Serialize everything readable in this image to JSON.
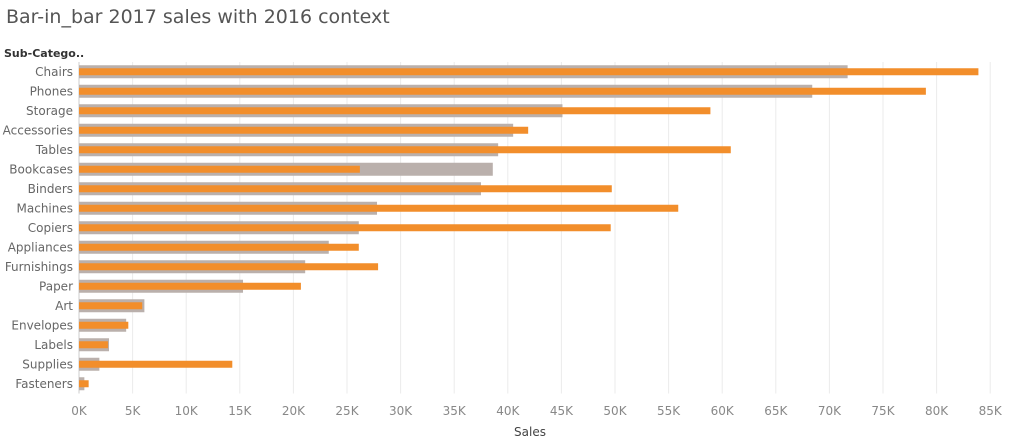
{
  "chart_data": {
    "type": "bar",
    "orientation": "horizontal",
    "title": "Bar-in_bar 2017 sales with 2016 context",
    "y_field_label": "Sub-Catego..",
    "xlabel": "Sales",
    "xlim": [
      0,
      88000
    ],
    "x_ticks": [
      0,
      5000,
      10000,
      15000,
      20000,
      25000,
      30000,
      35000,
      40000,
      45000,
      50000,
      55000,
      60000,
      65000,
      70000,
      75000,
      80000,
      85000
    ],
    "x_tick_labels": [
      "0K",
      "5K",
      "10K",
      "15K",
      "20K",
      "25K",
      "30K",
      "35K",
      "40K",
      "45K",
      "50K",
      "55K",
      "60K",
      "65K",
      "70K",
      "75K",
      "80K",
      "85K"
    ],
    "grid": "vertical",
    "categories": [
      "Chairs",
      "Phones",
      "Storage",
      "Accessories",
      "Tables",
      "Bookcases",
      "Binders",
      "Machines",
      "Copiers",
      "Appliances",
      "Furnishings",
      "Paper",
      "Art",
      "Envelopes",
      "Labels",
      "Supplies",
      "Fasteners"
    ],
    "series": [
      {
        "color": "#bab0ac",
        "values": [
          71700,
          68400,
          45100,
          40500,
          39100,
          38600,
          37500,
          27800,
          26100,
          23300,
          21100,
          15300,
          6100,
          4400,
          2800,
          1900,
          500
        ]
      },
      {
        "color": "#f28e2b",
        "values": [
          83900,
          79000,
          58900,
          41900,
          60800,
          26200,
          49700,
          55900,
          49600,
          26100,
          27900,
          20700,
          5900,
          4600,
          2700,
          14300,
          900
        ]
      }
    ]
  }
}
